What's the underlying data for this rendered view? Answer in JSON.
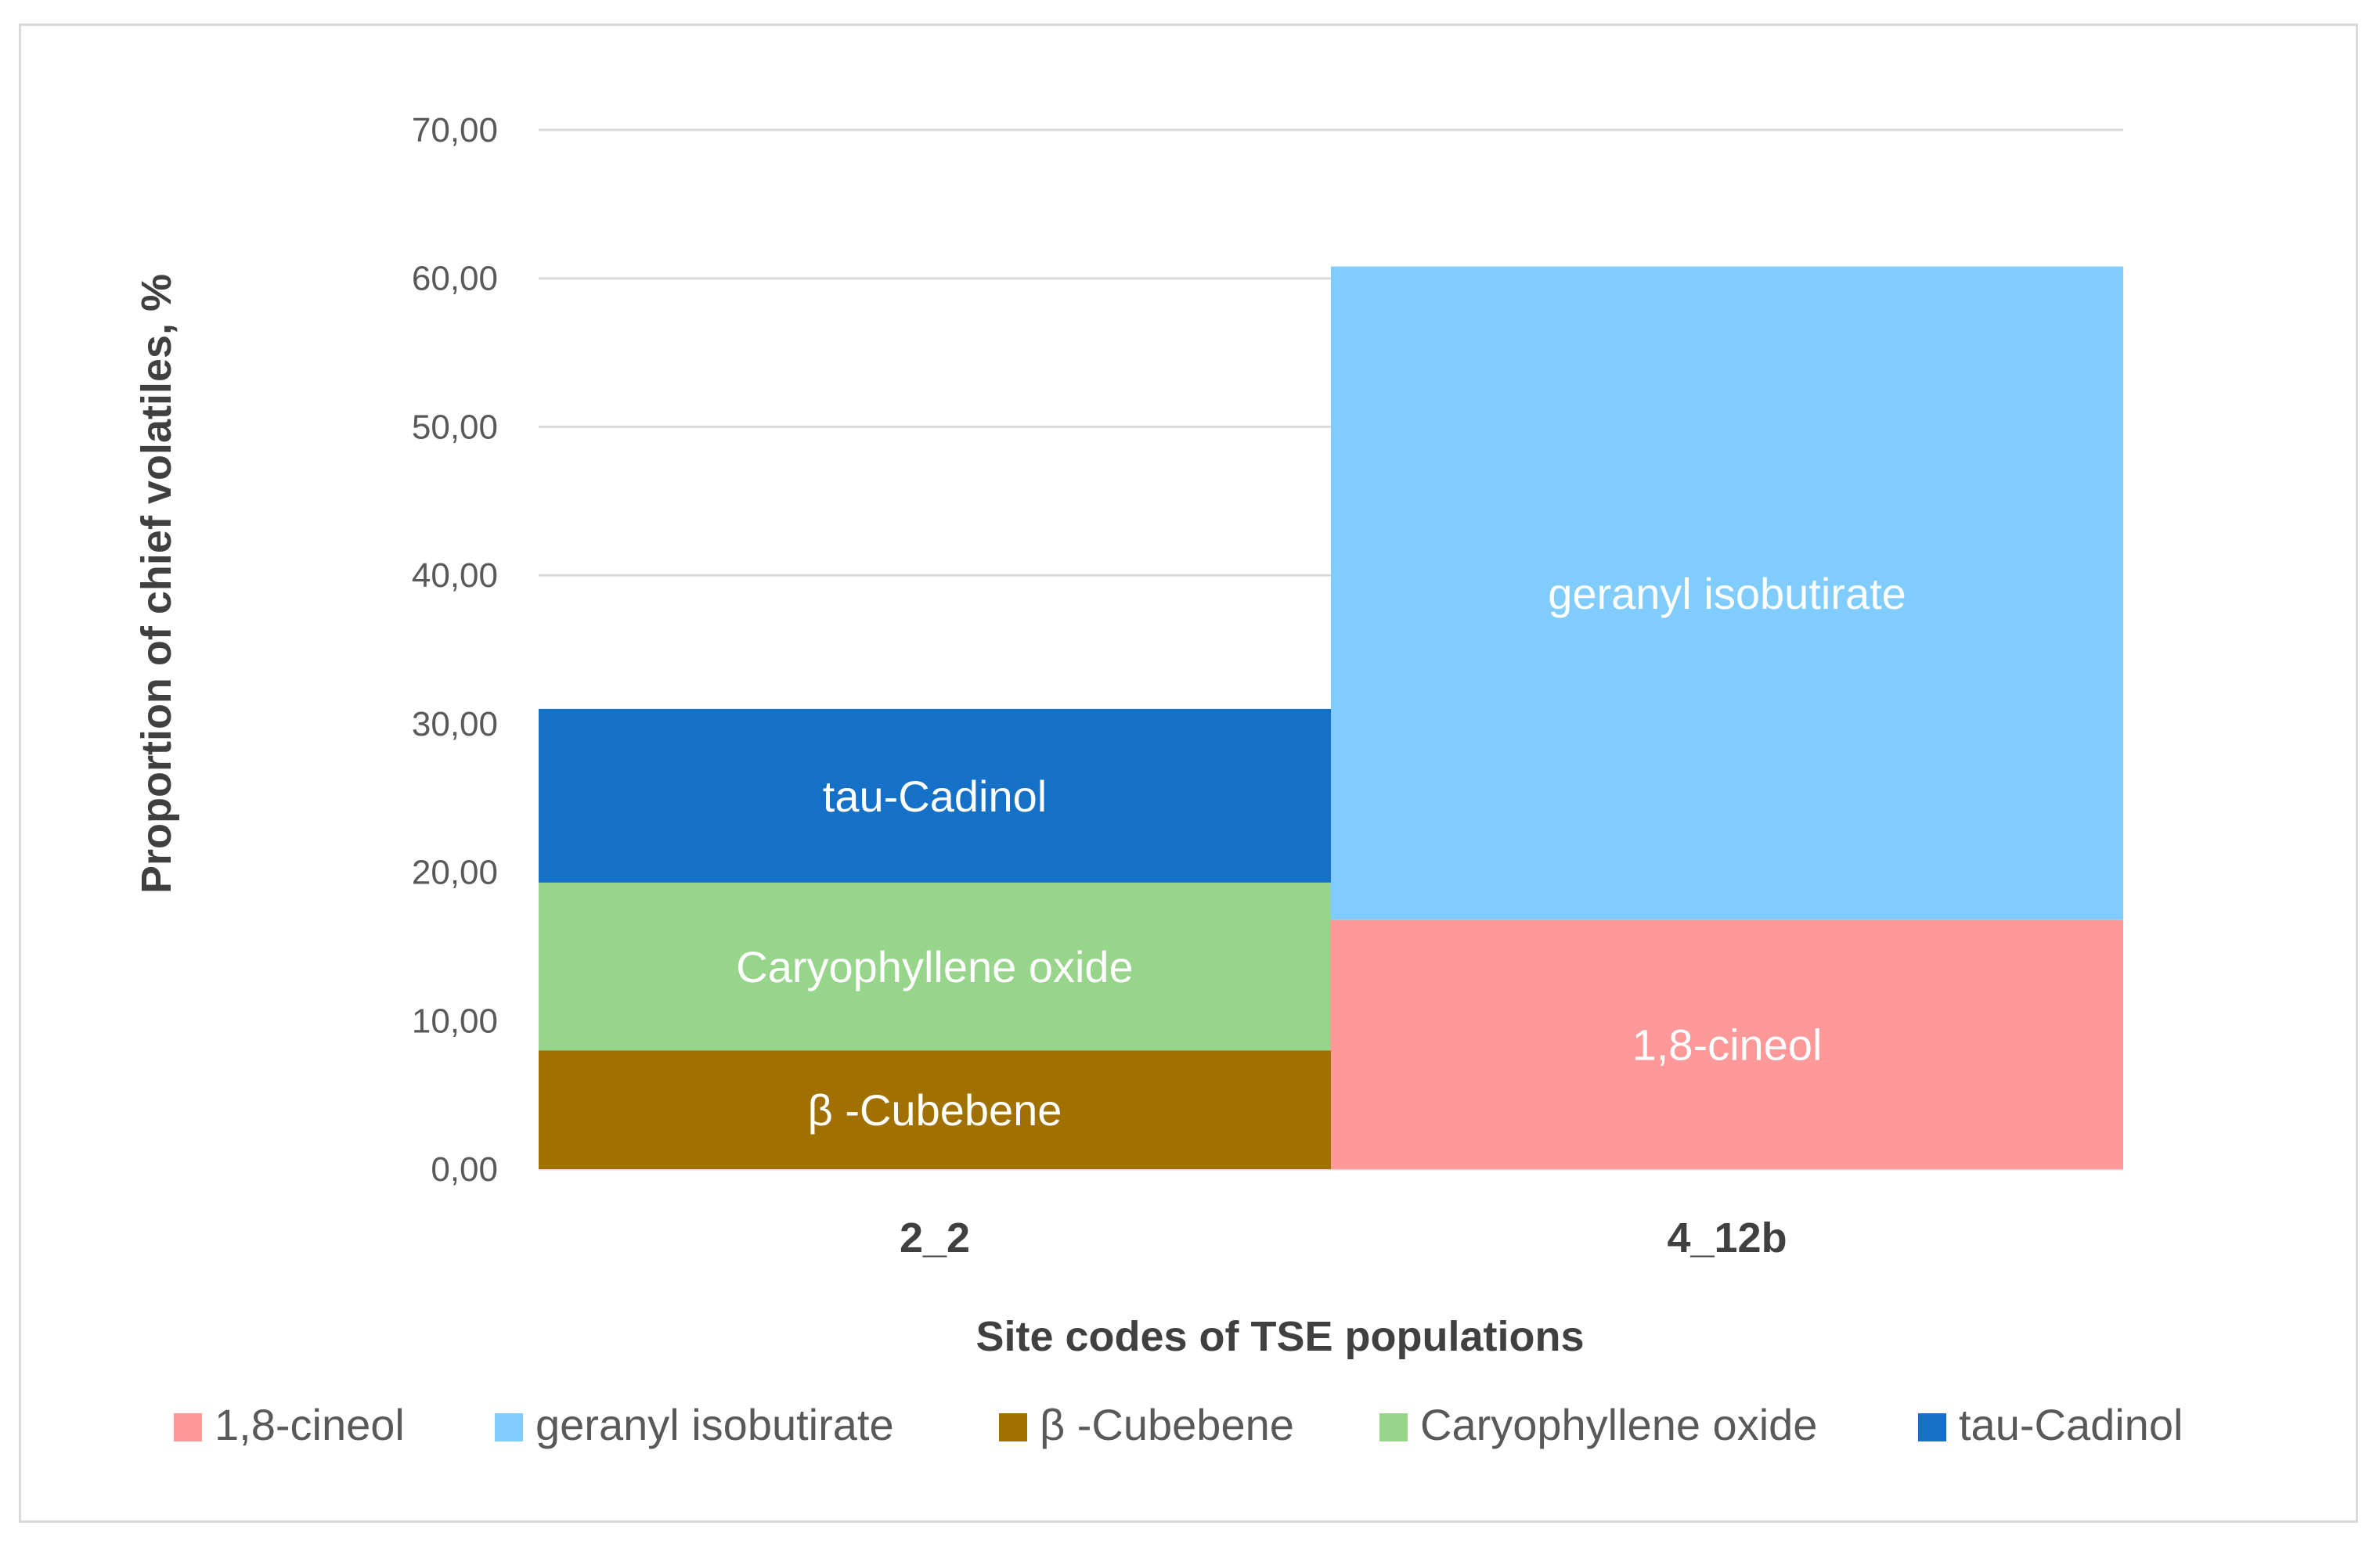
{
  "chart_data": {
    "type": "bar",
    "stacked": true,
    "title": "",
    "xlabel": "Site codes of TSE populations",
    "ylabel": "Proportion of chief volatiles, %",
    "ylim": [
      0,
      70
    ],
    "yticks": [
      "0,00",
      "10,00",
      "20,00",
      "30,00",
      "40,00",
      "50,00",
      "60,00",
      "70,00"
    ],
    "ytick_values": [
      0,
      10,
      20,
      30,
      40,
      50,
      60,
      70
    ],
    "categories": [
      "2_2",
      "4_12b"
    ],
    "grid": true,
    "legend_position": "bottom",
    "series": [
      {
        "name": "1,8-cineol",
        "color": "#ff9999",
        "values": [
          0,
          16.8
        ],
        "labels": [
          "",
          "1,8-cineol"
        ]
      },
      {
        "name": "geranyl isobutirate",
        "color": "#80ccff",
        "values": [
          0,
          44.0
        ],
        "labels": [
          "",
          "geranyl isobutirate"
        ]
      },
      {
        "name": "β -Cubebene",
        "color": "#a07000",
        "values": [
          8.0,
          0
        ],
        "labels": [
          "β -Cubebene",
          ""
        ]
      },
      {
        "name": "Caryophyllene oxide",
        "color": "#96d58a",
        "values": [
          11.3,
          0
        ],
        "labels": [
          "Caryophyllene oxide",
          ""
        ]
      },
      {
        "name": "tau-Cadinol",
        "color": "#1570c8",
        "values": [
          11.7,
          0
        ],
        "labels": [
          "tau-Cadinol",
          ""
        ]
      }
    ]
  }
}
